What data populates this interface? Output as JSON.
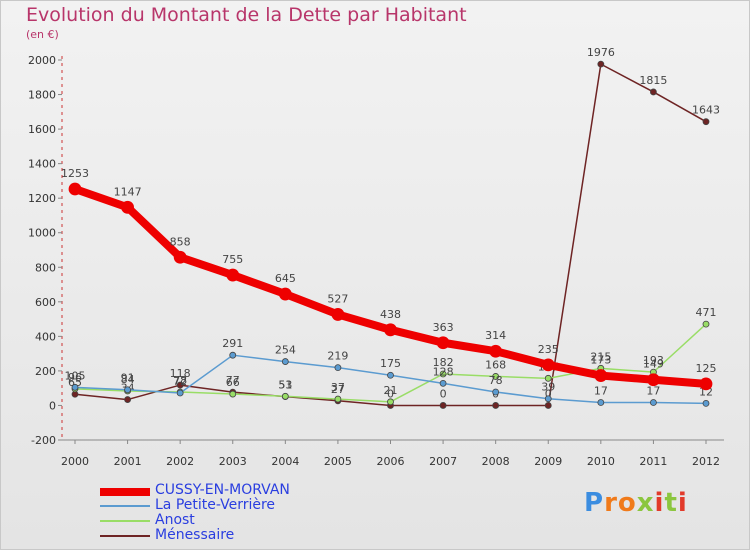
{
  "header": {
    "title": "Evolution du Montant de la Dette par Habitant",
    "subtitle": "(en €)"
  },
  "logo": {
    "text": "Proxiti",
    "colors": [
      "#3b8de0",
      "#f07a1a",
      "#8bc63f",
      "#e23a2a"
    ]
  },
  "chart_data": {
    "type": "line",
    "title": "Evolution du Montant de la Dette par Habitant",
    "subtitle": "(en €)",
    "x": [
      "2000",
      "2001",
      "2002",
      "2003",
      "2004",
      "2005",
      "2006",
      "2007",
      "2008",
      "2009",
      "2010",
      "2011",
      "2012"
    ],
    "ylim": [
      -200,
      2000
    ],
    "yticks": [
      "2000",
      "1800",
      "1600",
      "1400",
      "1200",
      "1000",
      "800",
      "600",
      "400",
      "200",
      "0",
      "-200"
    ],
    "grid": false,
    "legend_position": "bottom-left",
    "series": [
      {
        "name": "CUSSY-EN-MORVAN",
        "color": "#ee0000",
        "width": 8,
        "markerRadius": 6,
        "values": [
          1253,
          1147,
          858,
          755,
          645,
          527,
          438,
          363,
          314,
          235,
          173,
          149,
          125
        ],
        "labels": [
          "1253",
          "1147",
          "858",
          "755",
          "645",
          "527",
          "438",
          "363",
          "314",
          "235",
          "173",
          "149",
          "125"
        ]
      },
      {
        "name": "La Petite-Verrière",
        "color": "#5b9bd0",
        "width": 1.5,
        "markerRadius": 3,
        "values": [
          105,
          91,
          72,
          291,
          254,
          219,
          175,
          128,
          78,
          39,
          17,
          17,
          12
        ],
        "labels": [
          "105",
          "91",
          "72",
          "291",
          "254",
          "219",
          "175",
          "128",
          "78",
          "39",
          "17",
          "17",
          "12"
        ]
      },
      {
        "name": "Anost",
        "color": "#99dd66",
        "width": 1.5,
        "markerRadius": 3,
        "values": [
          96,
          84,
          78,
          66,
          53,
          37,
          21,
          182,
          168,
          157,
          215,
          193,
          471
        ],
        "labels": [
          "96",
          "84",
          "78",
          "66",
          "53",
          "37",
          "21",
          "182",
          "168",
          "157",
          "215",
          "193",
          "471"
        ]
      },
      {
        "name": "Ménessaire",
        "color": "#6e2424",
        "width": 1.5,
        "markerRadius": 3,
        "values": [
          65,
          34,
          118,
          77,
          51,
          27,
          0,
          0,
          0,
          0,
          1976,
          1815,
          1643
        ],
        "labels": [
          "65",
          "34",
          "118",
          "77",
          "51",
          "27",
          "0",
          "0",
          "0",
          "0",
          "1976",
          "1815",
          "1643"
        ]
      }
    ]
  }
}
